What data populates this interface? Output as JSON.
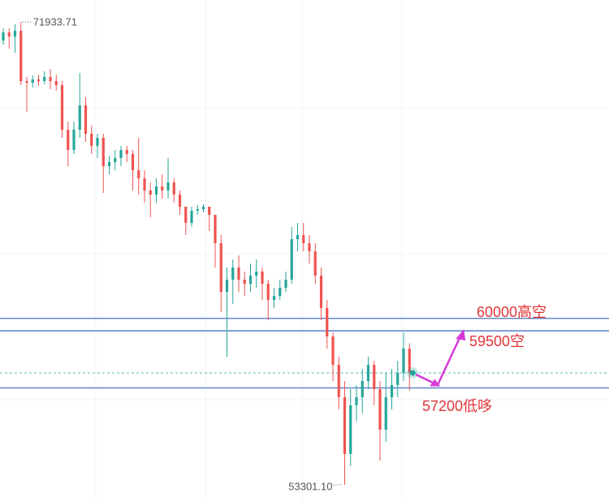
{
  "chart_data": {
    "type": "candlestick",
    "open": [
      71183,
      71510,
      71347,
      71575,
      69552,
      69487,
      69617,
      69552,
      69715,
      69552,
      69389,
      67594,
      66778,
      67594,
      68573,
      67431,
      66942,
      67268,
      66126,
      66289,
      66452,
      66778,
      66615,
      65963,
      65636,
      65147,
      64984,
      65310,
      65147,
      65473,
      64984,
      64494,
      63842,
      64331,
      64396,
      64494,
      64168,
      63026,
      61068,
      61558,
      62047,
      61558,
      61394,
      61721,
      61884,
      61394,
      60742,
      60905,
      61231,
      61558,
      63189,
      63352,
      63026,
      62700,
      61721,
      60416,
      59274,
      58131,
      56826,
      54542,
      56500,
      56826,
      57479,
      58131,
      57153,
      55521,
      56826,
      57316,
      57805,
      58784
    ],
    "high": [
      71673,
      71673,
      71836,
      71933.71,
      69715,
      69780,
      69813,
      69944,
      70041,
      69813,
      69552,
      67920,
      67920,
      69878,
      68899,
      67757,
      67431,
      67431,
      66550,
      66778,
      66942,
      66942,
      66778,
      67268,
      65963,
      65473,
      65636,
      65800,
      66452,
      65636,
      65147,
      64494,
      64494,
      64560,
      64592,
      64494,
      64168,
      63352,
      62047,
      62373,
      62537,
      61884,
      62210,
      62373,
      62047,
      61558,
      61231,
      61558,
      61884,
      63679,
      63842,
      63842,
      63352,
      63026,
      62047,
      60742,
      59437,
      58458,
      57479,
      57153,
      57316,
      57968,
      58458,
      58295,
      57479,
      57805,
      57968,
      58295,
      59437,
      59000
    ],
    "low": [
      71020,
      70857,
      70694,
      69389,
      68312,
      69291,
      69356,
      69421,
      69226,
      69160,
      67268,
      66126,
      66615,
      67268,
      67105,
      66615,
      66452,
      65049,
      65800,
      65963,
      66126,
      66289,
      65147,
      64984,
      64657,
      64070,
      64657,
      64821,
      64821,
      64657,
      64168,
      63352,
      63679,
      64168,
      64266,
      63515,
      62047,
      60252,
      58458,
      60579,
      61068,
      60905,
      61068,
      61231,
      60742,
      59926,
      60416,
      60742,
      61068,
      61394,
      62700,
      62700,
      62210,
      61394,
      59926,
      58784,
      57479,
      56337,
      53301.1,
      54053,
      55847,
      56174,
      57153,
      56500,
      54281,
      55032,
      56337,
      56826,
      57479,
      57087
    ],
    "close": [
      71510,
      71347,
      71575,
      69552,
      69487,
      69617,
      69552,
      69715,
      69552,
      69389,
      67594,
      66778,
      67594,
      68573,
      67431,
      66942,
      67268,
      66126,
      66289,
      66452,
      66778,
      66615,
      65963,
      65636,
      65147,
      64984,
      65310,
      65147,
      65473,
      64984,
      64494,
      63842,
      64331,
      64396,
      64494,
      64168,
      63026,
      61068,
      61558,
      62047,
      61558,
      61394,
      61721,
      61884,
      61394,
      60742,
      60905,
      61231,
      61558,
      63189,
      63352,
      63026,
      62700,
      61721,
      60416,
      59274,
      58131,
      56826,
      54542,
      56500,
      56826,
      57479,
      58131,
      57153,
      55521,
      56826,
      57316,
      57805,
      58784,
      57805
    ],
    "low_label": "53301.10",
    "levels": [
      {
        "value": 60000,
        "label": "60000高空"
      },
      {
        "value": 59500,
        "label": "59500空"
      },
      {
        "value": 57200,
        "label": "57200低哆"
      }
    ],
    "ylim": [
      52649,
      72815
    ],
    "up_color": "#26a69a",
    "down_color": "#ef5350",
    "level_color": "#4a72c8",
    "label_color": "#e0353b",
    "arrow_color": "#d63ad6"
  }
}
